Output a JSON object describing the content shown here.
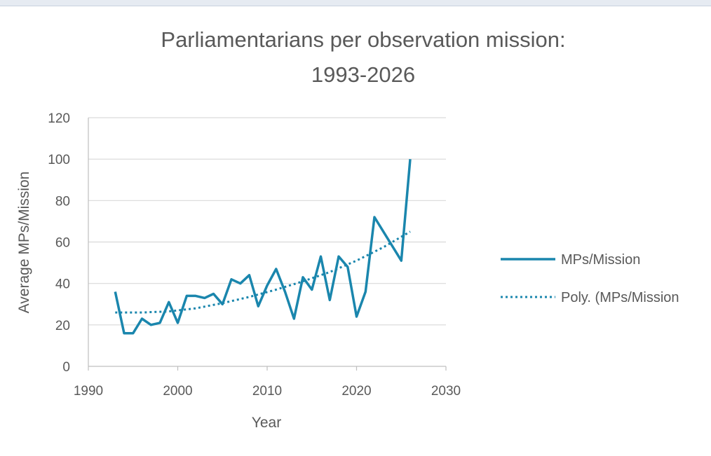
{
  "chart_data": {
    "type": "line",
    "title": "Parliamentarians per observation mission: 1993-2026",
    "title_lines": [
      "Parliamentarians per observation mission:",
      "1993-2026"
    ],
    "xlabel": "Year",
    "ylabel": "Average MPs/Mission",
    "xlim": [
      1990,
      2030
    ],
    "ylim": [
      0,
      120
    ],
    "xticks": [
      1990,
      2000,
      2010,
      2020,
      2030
    ],
    "yticks": [
      0,
      20,
      40,
      60,
      80,
      100,
      120
    ],
    "grid": "horizontal",
    "legend": "right",
    "colors": {
      "series": "#1a86ad",
      "grid": "#d9d9d9",
      "axis": "#bfbfbf",
      "text": "#595959"
    },
    "series": [
      {
        "name": "MPs/Mission",
        "style": "solid",
        "x": [
          1993,
          1994,
          1995,
          1996,
          1997,
          1998,
          1999,
          2000,
          2001,
          2002,
          2003,
          2004,
          2005,
          2006,
          2007,
          2008,
          2009,
          2010,
          2011,
          2012,
          2013,
          2014,
          2015,
          2016,
          2017,
          2018,
          2019,
          2020,
          2021,
          2022,
          2025,
          2026
        ],
        "y": [
          36,
          16,
          16,
          23,
          20,
          21,
          31,
          21,
          34,
          34,
          33,
          35,
          30,
          42,
          40,
          44,
          29,
          39,
          47,
          36,
          23,
          43,
          37,
          53,
          32,
          53,
          48,
          24,
          36,
          72,
          51,
          100
        ]
      },
      {
        "name": "Poly. (MPs/Mission",
        "style": "dotted",
        "x": [
          1993,
          1996,
          1999,
          2002,
          2005,
          2008,
          2011,
          2014,
          2017,
          2020,
          2023,
          2026
        ],
        "y": [
          26,
          26,
          26.5,
          28,
          30.5,
          33.5,
          37,
          41,
          45.5,
          51,
          57.5,
          65
        ]
      }
    ]
  }
}
